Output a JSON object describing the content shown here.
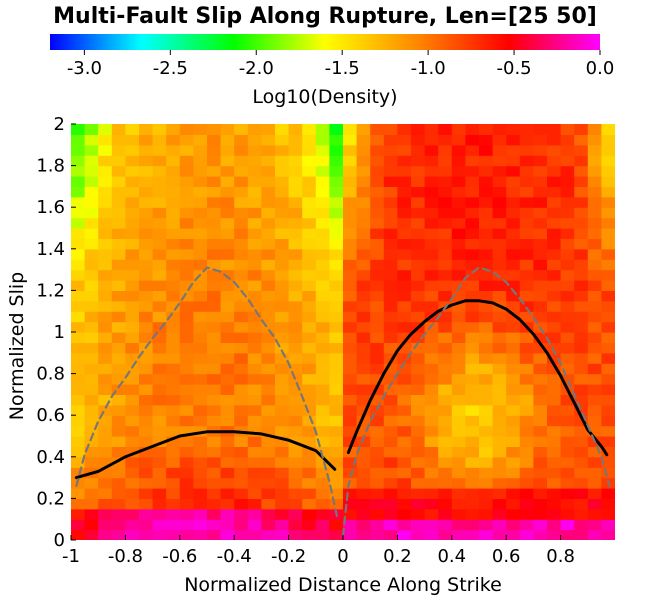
{
  "chart_data": {
    "type": "heatmap",
    "title": "Multi-Fault Slip Along Rupture, Len=[25 50]",
    "xlabel": "Normalized Distance Along Strike",
    "ylabel": "Normalized Slip",
    "xlim": [
      -1,
      1
    ],
    "ylim": [
      0,
      2
    ],
    "x_ticks": [
      "-1",
      "-0.8",
      "-0.6",
      "-0.4",
      "-0.2",
      "0",
      "0.2",
      "0.4",
      "0.6",
      "0.8"
    ],
    "x_tick_values": [
      -1,
      -0.8,
      -0.6,
      -0.4,
      -0.2,
      0,
      0.2,
      0.4,
      0.6,
      0.8
    ],
    "y_ticks": [
      "0",
      "0.2",
      "0.4",
      "0.6",
      "0.8",
      "1",
      "1.2",
      "1.4",
      "1.6",
      "1.8",
      "2"
    ],
    "y_tick_values": [
      0,
      0.2,
      0.4,
      0.6,
      0.8,
      1,
      1.2,
      1.4,
      1.6,
      1.8,
      2
    ],
    "colorbar": {
      "label": "Log10(Density)",
      "range": [
        -3.2,
        0
      ],
      "ticks": [
        "-3.0",
        "-2.5",
        "-2.0",
        "-1.5",
        "-1.0",
        "-0.5",
        "0.0"
      ],
      "tick_values": [
        -3.0,
        -2.5,
        -2.0,
        -1.5,
        -1.0,
        -0.5,
        0.0
      ],
      "colormap": "jet-to-magenta",
      "colors": [
        "#0000ff",
        "#00ffff",
        "#00ff00",
        "#ffff00",
        "#ff8800",
        "#ff0000",
        "#ff00ff"
      ]
    },
    "grid": false,
    "series": [
      {
        "style": "solid",
        "color": "#000000",
        "x": [
          -0.98,
          -0.9,
          -0.8,
          -0.7,
          -0.6,
          -0.5,
          -0.4,
          -0.3,
          -0.2,
          -0.1,
          -0.03
        ],
        "y": [
          0.3,
          0.33,
          0.4,
          0.45,
          0.5,
          0.52,
          0.52,
          0.51,
          0.48,
          0.43,
          0.34
        ]
      },
      {
        "style": "solid",
        "color": "#000000",
        "x": [
          0.02,
          0.05,
          0.1,
          0.15,
          0.2,
          0.25,
          0.3,
          0.35,
          0.4,
          0.45,
          0.5,
          0.55,
          0.6,
          0.65,
          0.7,
          0.75,
          0.8,
          0.85,
          0.9,
          0.95,
          0.97
        ],
        "y": [
          0.42,
          0.52,
          0.67,
          0.8,
          0.91,
          0.99,
          1.05,
          1.1,
          1.13,
          1.15,
          1.15,
          1.14,
          1.11,
          1.06,
          0.99,
          0.9,
          0.79,
          0.66,
          0.53,
          0.45,
          0.41
        ]
      },
      {
        "style": "dashed",
        "color": "#777777",
        "x": [
          -0.98,
          -0.95,
          -0.9,
          -0.85,
          -0.8,
          -0.75,
          -0.7,
          -0.65,
          -0.6,
          -0.55,
          -0.5,
          -0.45,
          -0.4,
          -0.35,
          -0.3,
          -0.25,
          -0.2,
          -0.15,
          -0.1,
          -0.05,
          -0.02
        ],
        "y": [
          0.26,
          0.41,
          0.57,
          0.69,
          0.78,
          0.88,
          0.97,
          1.05,
          1.14,
          1.24,
          1.31,
          1.29,
          1.24,
          1.16,
          1.06,
          0.97,
          0.85,
          0.69,
          0.52,
          0.28,
          0.1
        ]
      },
      {
        "style": "dashed",
        "color": "#777777",
        "x": [
          0.0,
          0.02,
          0.05,
          0.1,
          0.15,
          0.2,
          0.25,
          0.3,
          0.35,
          0.4,
          0.45,
          0.5,
          0.55,
          0.6,
          0.65,
          0.7,
          0.75,
          0.8,
          0.85,
          0.9,
          0.95,
          0.98
        ],
        "y": [
          0.02,
          0.26,
          0.41,
          0.57,
          0.69,
          0.8,
          0.9,
          0.99,
          1.07,
          1.16,
          1.26,
          1.31,
          1.29,
          1.24,
          1.16,
          1.07,
          0.97,
          0.85,
          0.7,
          0.55,
          0.4,
          0.26
        ]
      }
    ]
  }
}
